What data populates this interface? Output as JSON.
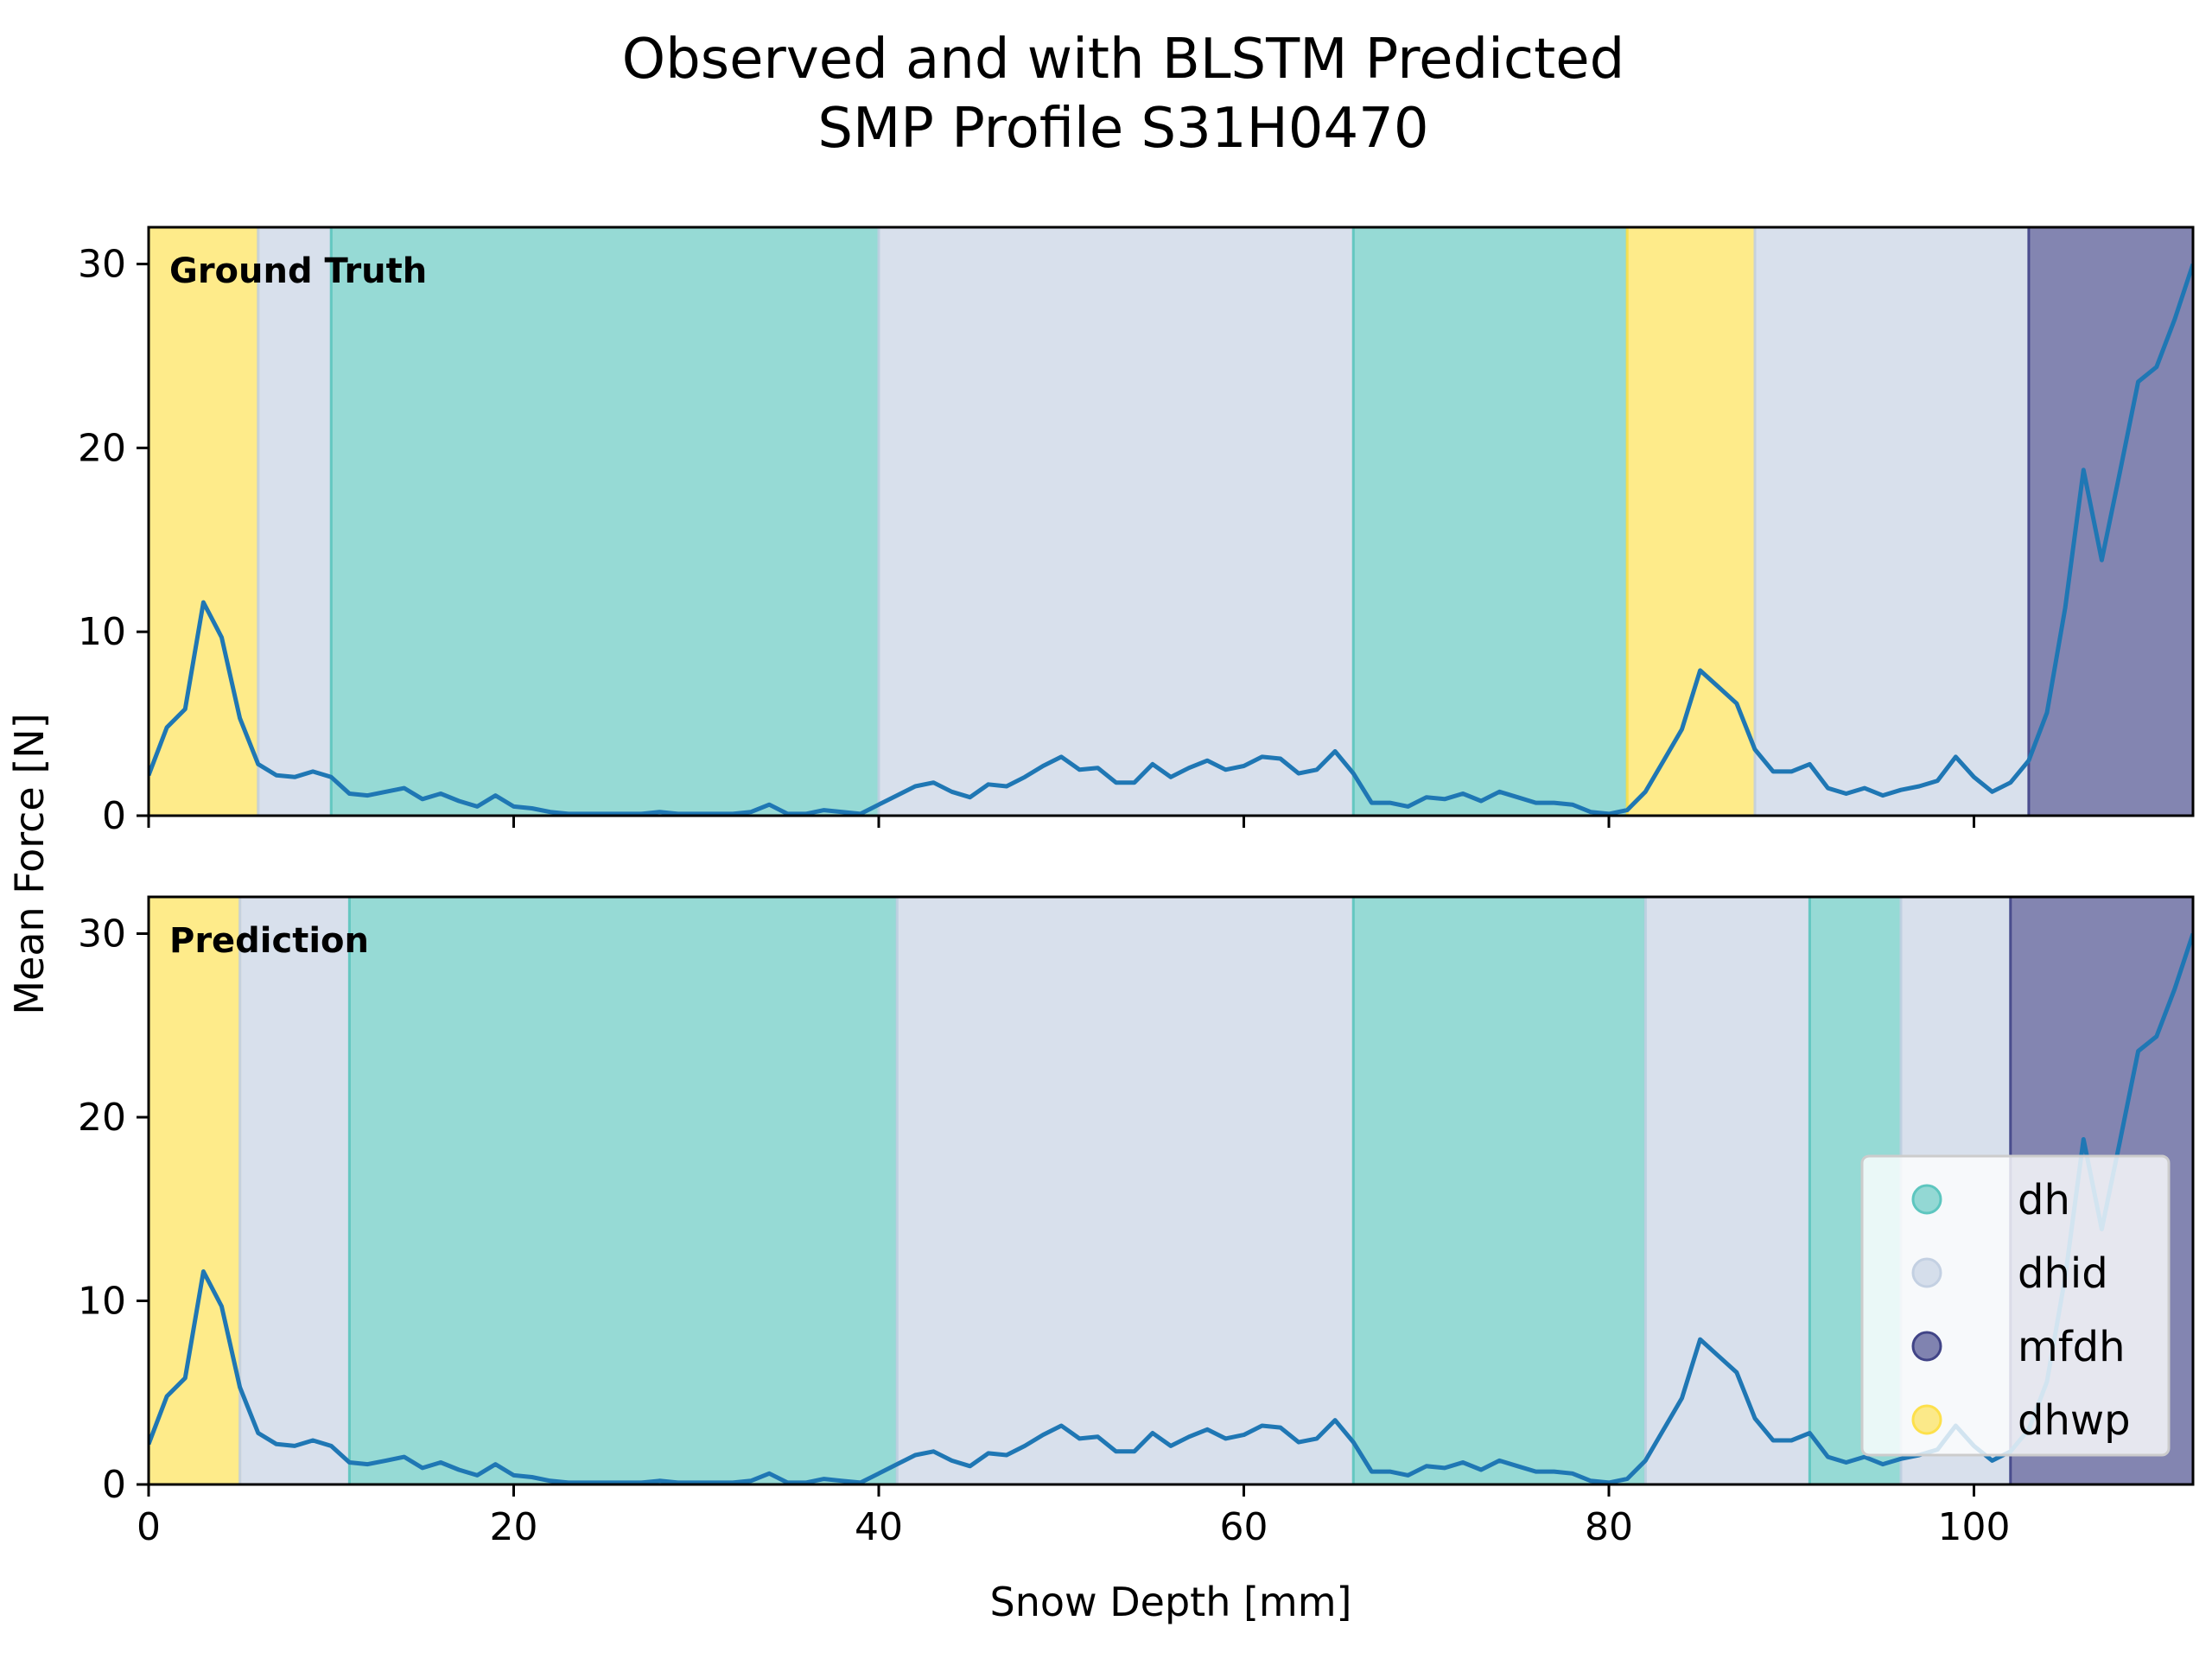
{
  "chart_data": {
    "type": "line",
    "title_lines": [
      "Observed and with BLSTM Predicted",
      "SMP Profile S31H0470"
    ],
    "xlabel": "Snow Depth [mm]",
    "ylabel": "Mean Force [N]",
    "xlim": [
      0,
      112
    ],
    "ylim": [
      0,
      32
    ],
    "xticks": [
      0,
      20,
      40,
      60,
      80,
      100
    ],
    "yticks": [
      0,
      10,
      20,
      30
    ],
    "classes": [
      {
        "name": "dh",
        "color": "#5dc6bf"
      },
      {
        "name": "dhid",
        "color": "#c3d0e2"
      },
      {
        "name": "mfdh",
        "color": "#414487"
      },
      {
        "name": "dhwp",
        "color": "#fde04b"
      }
    ],
    "line_color": "#1f77b4",
    "legend_location": "lower right",
    "series": {
      "x": [
        0,
        1,
        2,
        3,
        4,
        5,
        6,
        7,
        8,
        9,
        10,
        11,
        12,
        13,
        14,
        15,
        16,
        17,
        18,
        19,
        20,
        21,
        22,
        23,
        24,
        25,
        26,
        27,
        28,
        29,
        30,
        31,
        32,
        33,
        34,
        35,
        36,
        37,
        38,
        39,
        40,
        41,
        42,
        43,
        44,
        45,
        46,
        47,
        48,
        49,
        50,
        51,
        52,
        53,
        54,
        55,
        56,
        57,
        58,
        59,
        60,
        61,
        62,
        63,
        64,
        65,
        66,
        67,
        68,
        69,
        70,
        71,
        72,
        73,
        74,
        75,
        76,
        77,
        78,
        79,
        80,
        81,
        82,
        83,
        84,
        85,
        86,
        87,
        88,
        89,
        90,
        91,
        92,
        93,
        94,
        95,
        96,
        97,
        98,
        99,
        100,
        101,
        102,
        103,
        104,
        105,
        106,
        107,
        108,
        109,
        110,
        111,
        112
      ],
      "y": [
        2.2,
        4.8,
        5.8,
        11.6,
        9.7,
        5.3,
        2.8,
        2.2,
        2.1,
        2.4,
        2.1,
        1.2,
        1.1,
        1.3,
        1.5,
        0.9,
        1.2,
        0.8,
        0.5,
        1.1,
        0.5,
        0.4,
        0.2,
        0.1,
        0.1,
        0.1,
        0.1,
        0.1,
        0.2,
        0.1,
        0.1,
        0.1,
        0.1,
        0.2,
        0.6,
        0.1,
        0.1,
        0.3,
        0.2,
        0.1,
        0.6,
        1.1,
        1.6,
        1.8,
        1.3,
        1.0,
        1.7,
        1.6,
        2.1,
        2.7,
        3.2,
        2.5,
        2.6,
        1.8,
        1.8,
        2.8,
        2.1,
        2.6,
        3.0,
        2.5,
        2.7,
        3.2,
        3.1,
        2.3,
        2.5,
        3.5,
        2.3,
        0.7,
        0.7,
        0.5,
        1.0,
        0.9,
        1.2,
        0.8,
        1.3,
        1.0,
        0.7,
        0.7,
        0.6,
        0.2,
        0.1,
        0.3,
        1.3,
        3.0,
        4.7,
        7.9,
        7.0,
        6.1,
        3.6,
        2.4,
        2.4,
        2.8,
        1.5,
        1.2,
        1.5,
        1.1,
        1.4,
        1.6,
        1.9,
        3.2,
        2.1,
        1.3,
        1.8,
        3.0,
        5.6,
        11.3,
        18.8,
        13.9,
        18.7,
        23.6,
        24.4,
        27.0,
        30.0
      ]
    },
    "panels": [
      {
        "label": "Ground Truth",
        "segments": [
          {
            "class": "dhwp",
            "start": 0,
            "end": 6
          },
          {
            "class": "dhid",
            "start": 6,
            "end": 10
          },
          {
            "class": "dh",
            "start": 10,
            "end": 40
          },
          {
            "class": "dhid",
            "start": 40,
            "end": 66
          },
          {
            "class": "dh",
            "start": 66,
            "end": 81
          },
          {
            "class": "dhwp",
            "start": 81,
            "end": 88
          },
          {
            "class": "dhid",
            "start": 88,
            "end": 103
          },
          {
            "class": "mfdh",
            "start": 103,
            "end": 112
          }
        ]
      },
      {
        "label": "Prediction",
        "segments": [
          {
            "class": "dhwp",
            "start": 0,
            "end": 5
          },
          {
            "class": "dhid",
            "start": 5,
            "end": 11
          },
          {
            "class": "dh",
            "start": 11,
            "end": 41
          },
          {
            "class": "dhid",
            "start": 41,
            "end": 66
          },
          {
            "class": "dh",
            "start": 66,
            "end": 82
          },
          {
            "class": "dhid",
            "start": 82,
            "end": 91
          },
          {
            "class": "dh",
            "start": 91,
            "end": 96
          },
          {
            "class": "dhid",
            "start": 96,
            "end": 102
          },
          {
            "class": "mfdh",
            "start": 102,
            "end": 112
          }
        ]
      }
    ]
  }
}
